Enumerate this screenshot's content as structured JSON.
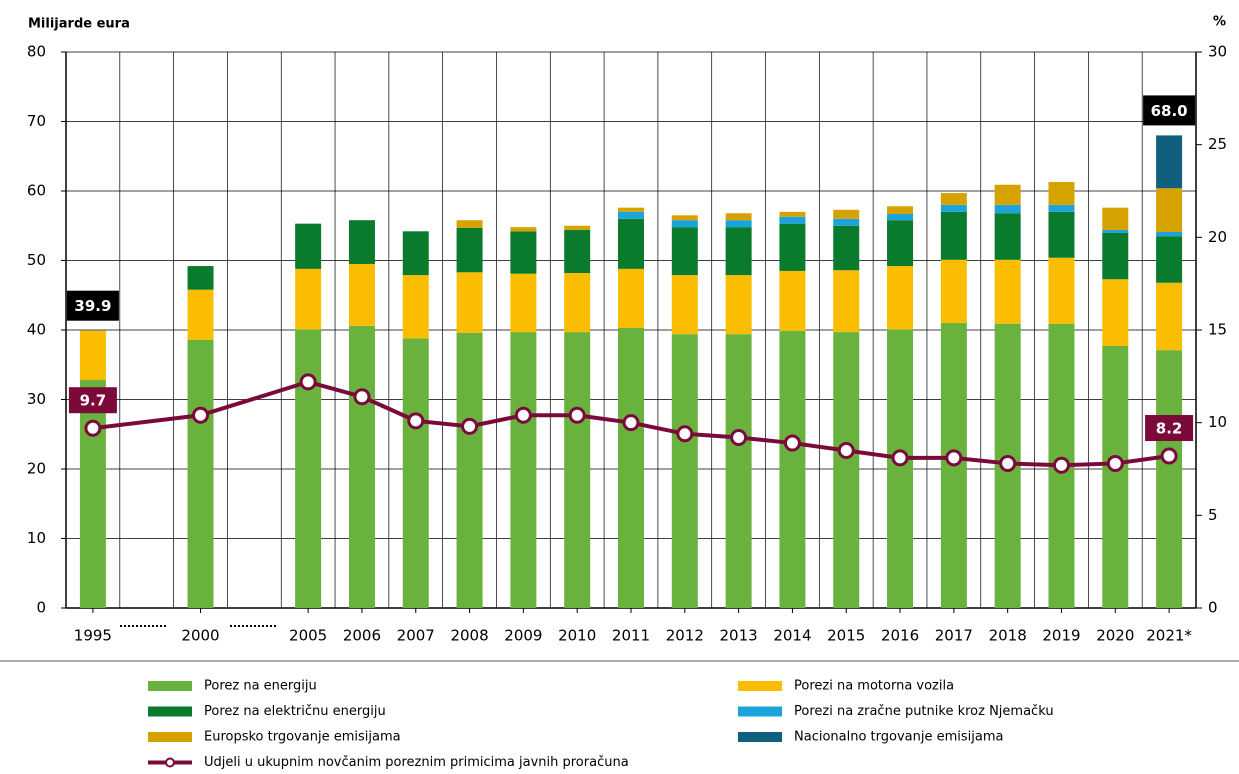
{
  "chart_data": {
    "type": "bar",
    "stacked": true,
    "y_label": "Milijarde eura",
    "y2_label": "%",
    "categories": [
      "1995",
      "2000",
      "2005",
      "2006",
      "2007",
      "2008",
      "2009",
      "2010",
      "2011",
      "2012",
      "2013",
      "2014",
      "2015",
      "2016",
      "2017",
      "2018",
      "2019",
      "2020",
      "2021*"
    ],
    "series": [
      {
        "name": "Porez na energiju",
        "color": "#6ab23e",
        "values": [
          32.8,
          38.6,
          40.1,
          40.6,
          38.8,
          39.6,
          39.7,
          39.7,
          40.3,
          39.4,
          39.4,
          39.9,
          39.7,
          40.1,
          41.0,
          40.9,
          40.9,
          37.7,
          37.1
        ]
      },
      {
        "name": "Porezi na motorna vozila",
        "color": "#fbbd00",
        "values": [
          7.1,
          7.2,
          8.7,
          8.9,
          9.1,
          8.7,
          8.4,
          8.5,
          8.5,
          8.5,
          8.5,
          8.6,
          8.9,
          9.1,
          9.1,
          9.2,
          9.5,
          9.6,
          9.7
        ]
      },
      {
        "name": "Porez na električnu energiju",
        "color": "#0a7a2d",
        "values": [
          0,
          3.4,
          6.5,
          6.3,
          6.3,
          6.4,
          6.1,
          6.2,
          7.2,
          6.9,
          6.9,
          6.8,
          6.4,
          6.6,
          6.9,
          6.7,
          6.6,
          6.7,
          6.7
        ]
      },
      {
        "name": "Porezi na zračne putnike kroz Njemačku",
        "color": "#1aa3dc",
        "values": [
          0,
          0,
          0,
          0,
          0,
          0,
          0,
          0,
          1.0,
          1.0,
          1.0,
          1.0,
          1.0,
          0.9,
          1.0,
          1.2,
          1.0,
          0.4,
          0.6
        ]
      },
      {
        "name": "Europsko trgovanje emisijama",
        "color": "#d6a200",
        "values": [
          0,
          0,
          0,
          0,
          0,
          1.1,
          0.6,
          0.6,
          0.6,
          0.7,
          1.0,
          0.7,
          1.3,
          1.1,
          1.7,
          2.9,
          3.3,
          3.2,
          6.3
        ]
      },
      {
        "name": "Nacionalno trgovanje emisijama",
        "color": "#105f7f",
        "values": [
          0,
          0,
          0,
          0,
          0,
          0,
          0,
          0,
          0,
          0,
          0,
          0,
          0,
          0,
          0,
          0,
          0,
          0,
          7.6
        ]
      },
      {
        "name": "Udjeli u ukupnim novčanim poreznim primicima javnih proračuna",
        "type": "line",
        "axis": "y2",
        "color": "#7b0a3a",
        "values": [
          9.7,
          10.4,
          12.2,
          11.4,
          10.1,
          9.8,
          10.4,
          10.4,
          10.0,
          9.4,
          9.2,
          8.9,
          8.5,
          8.1,
          8.1,
          7.8,
          7.7,
          7.8,
          8.2
        ],
        "value_labels": [
          "9.7",
          null,
          null,
          null,
          null,
          null,
          null,
          null,
          null,
          null,
          null,
          null,
          null,
          null,
          null,
          null,
          null,
          null,
          "8.2"
        ]
      }
    ],
    "totals": [
      39.9,
      null,
      null,
      null,
      null,
      null,
      null,
      null,
      null,
      null,
      null,
      null,
      null,
      null,
      null,
      null,
      null,
      null,
      68.0
    ],
    "total_labels": [
      "39.9",
      null,
      null,
      null,
      null,
      null,
      null,
      null,
      null,
      null,
      null,
      null,
      null,
      null,
      null,
      null,
      null,
      null,
      "68.0"
    ],
    "ylim": [
      0,
      80
    ],
    "yticks": [
      0,
      10,
      20,
      30,
      40,
      50,
      60,
      70,
      80
    ],
    "y2lim": [
      0,
      30
    ],
    "y2ticks": [
      0,
      5,
      10,
      15,
      20,
      25,
      30
    ],
    "grid": true
  }
}
